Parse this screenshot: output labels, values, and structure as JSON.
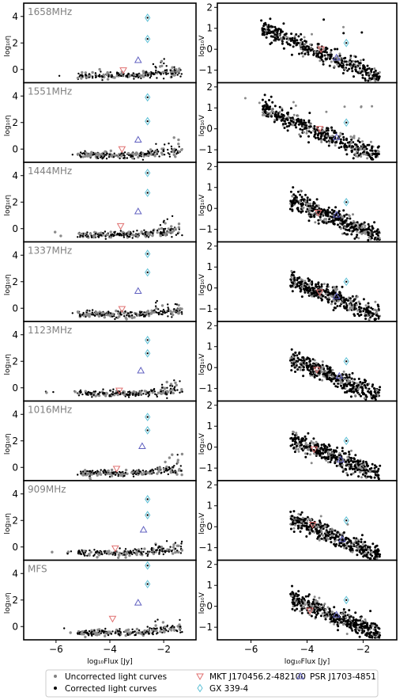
{
  "chart_data": {
    "type": "scatter",
    "panel_labels": [
      "1658MHz",
      "1551MHz",
      "1444MHz",
      "1337MHz",
      "1123MHz",
      "1016MHz",
      "909MHz",
      "MFS"
    ],
    "left_column": {
      "ylabel": "log₁₀η",
      "xlabel": "log₁₀Flux [Jy]",
      "xlim": [
        -7.2,
        -0.8
      ],
      "ylim": [
        -1.0,
        5.0
      ],
      "xticks": [
        -6,
        -4,
        -2
      ],
      "xtick_labels": [
        "−6",
        "−4",
        "−2"
      ],
      "yticks": [
        0,
        2,
        4
      ],
      "ytick_labels": [
        "0",
        "2",
        "4"
      ]
    },
    "right_column": {
      "ylabel": "log₁₀V",
      "xlabel": "log₁₀Flux [Jy]",
      "xlim": [
        -7.2,
        -0.8
      ],
      "ylim": [
        -1.6,
        2.2
      ],
      "xticks": [
        -6,
        -4,
        -2
      ],
      "xtick_labels": [
        "−6",
        "−4",
        "−2"
      ],
      "yticks": [
        -1,
        0,
        1,
        2
      ],
      "ytick_labels": [
        "−1",
        "0",
        "1",
        "2"
      ]
    },
    "highlighted_sources": [
      {
        "name": "MKT J170456.2-482100",
        "marker": "triangle-down",
        "color": "#e07070",
        "eta": [
          -0.05,
          0.0,
          0.2,
          -0.05,
          -0.2,
          -0.1,
          -0.1,
          0.6
        ],
        "v": [
          0.0,
          0.0,
          -0.2,
          -0.2,
          -0.1,
          -0.1,
          0.1,
          -0.2
        ],
        "flux": [
          -3.5,
          -3.55,
          -3.6,
          -3.55,
          -3.65,
          -3.75,
          -3.8,
          -3.9
        ]
      },
      {
        "name": "GX 339-4",
        "marker": "diamond",
        "color": "#5bc0d6",
        "eta": [
          [
            3.9,
            2.3
          ],
          [
            3.9,
            2.1
          ],
          [
            4.2,
            2.7
          ],
          [
            4.1,
            2.7
          ],
          [
            3.6,
            2.6
          ],
          [
            3.8,
            2.8
          ],
          [
            3.6,
            2.4
          ],
          [
            4.6,
            3.2
          ]
        ],
        "v": [
          0.3,
          0.3,
          0.3,
          0.3,
          0.3,
          0.3,
          0.3,
          0.3
        ],
        "flux": [
          -2.6,
          -2.6,
          -2.6,
          -2.6,
          -2.6,
          -2.6,
          -2.6,
          -2.6
        ]
      },
      {
        "name": "PSR J1703-4851",
        "marker": "triangle-up",
        "color": "#6060c0",
        "eta": [
          0.7,
          0.7,
          1.3,
          1.3,
          1.3,
          1.6,
          1.3,
          1.8
        ],
        "v": [
          -0.4,
          -0.4,
          -0.3,
          -0.4,
          -0.4,
          -0.6,
          -0.6,
          -0.4
        ],
        "flux": [
          -2.95,
          -2.95,
          -2.95,
          -2.95,
          -2.85,
          -2.8,
          -2.75,
          -2.95
        ]
      }
    ],
    "series": [
      {
        "name": "Uncorrected light curves",
        "color": "#808080",
        "marker": "dot"
      },
      {
        "name": "Corrected light curves",
        "color": "#000000",
        "marker": "dot"
      }
    ],
    "legend": {
      "position": "bottom",
      "entries": [
        {
          "label": "Uncorrected light curves",
          "marker": "dot",
          "color": "#808080"
        },
        {
          "label": "MKT J170456.2-482100",
          "marker": "triangle-down",
          "color": "#e07070"
        },
        {
          "label": "PSR J1703-4851",
          "marker": "triangle-up",
          "color": "#6060c0"
        },
        {
          "label": "Corrected light curves",
          "marker": "dot",
          "color": "#000000"
        },
        {
          "label": "GX 339-4",
          "marker": "diamond",
          "color": "#5bc0d6"
        }
      ]
    },
    "grid": false
  }
}
